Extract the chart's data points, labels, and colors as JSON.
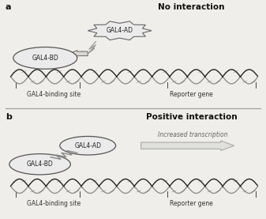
{
  "bg_color": "#f0eeea",
  "panel_a": {
    "label": "a",
    "title": "No interaction",
    "gal4_bd_label": "GAL4-BD",
    "gal4_ad_label": "GAL4-AD",
    "bottom_left_label": "GAL4-binding site",
    "bottom_right_label": "Reporter gene"
  },
  "panel_b": {
    "label": "b",
    "title": "Positive interaction",
    "gal4_bd_label": "GAL4-BD",
    "gal4_ad_label": "GAL4-AD",
    "bottom_left_label": "GAL4-binding site",
    "bottom_right_label": "Reporter gene",
    "arrow_label": "Increased transcription"
  },
  "font_color": "#333333",
  "label_fontsize": 5.5,
  "title_fontsize": 7.5,
  "panel_label_fontsize": 8
}
